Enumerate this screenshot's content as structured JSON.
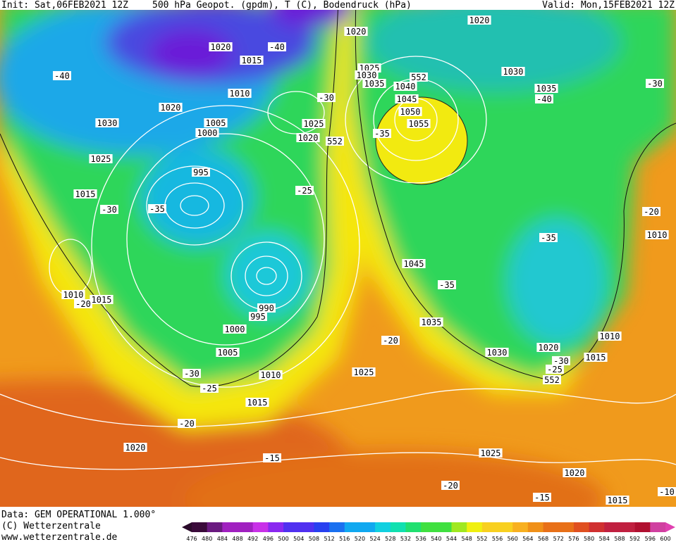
{
  "header": {
    "init": "Init: Sat,06FEB2021 12Z",
    "title": "500 hPa Geopot. (gpdm), T (C), Bodendruck (hPa)",
    "valid": "Valid: Mon,15FEB2021 12Z"
  },
  "map_labels": [
    "1020",
    "1015",
    "-40",
    "1020",
    "1020",
    "1030",
    "1035",
    "-40",
    "-30",
    "-40",
    "1020",
    "1010",
    "1030",
    "1005",
    "1000",
    "1025",
    "995",
    "1015",
    "-30",
    "-35",
    "1025",
    "1020",
    "-30",
    "552",
    "1025",
    "1030",
    "1035",
    "1040",
    "1045",
    "552",
    "1050",
    "1055",
    "-35",
    "-25",
    "1010",
    "1015",
    "-20",
    "990",
    "995",
    "1000",
    "1005",
    "1010",
    "1045",
    "-35",
    "1035",
    "-20",
    "1030",
    "1020",
    "-30",
    "-25",
    "1015",
    "1010",
    "552",
    "-35",
    "-20",
    "1010",
    "1025",
    "-30",
    "-25",
    "1015",
    "-20",
    "1020",
    "-15",
    "1025",
    "1020",
    "-20",
    "-15",
    "1015",
    "-10"
  ],
  "footer": {
    "data": "Data: GEM OPERATIONAL 1.000°",
    "copyright": "(C) Wetterzentrale",
    "url": "www.wetterzentrale.de"
  },
  "colorbar": {
    "ticks": [
      "476",
      "480",
      "484",
      "488",
      "492",
      "496",
      "500",
      "504",
      "508",
      "512",
      "516",
      "520",
      "524",
      "528",
      "532",
      "536",
      "540",
      "544",
      "548",
      "552",
      "556",
      "560",
      "564",
      "568",
      "572",
      "576",
      "580",
      "584",
      "588",
      "592",
      "596",
      "600"
    ]
  }
}
